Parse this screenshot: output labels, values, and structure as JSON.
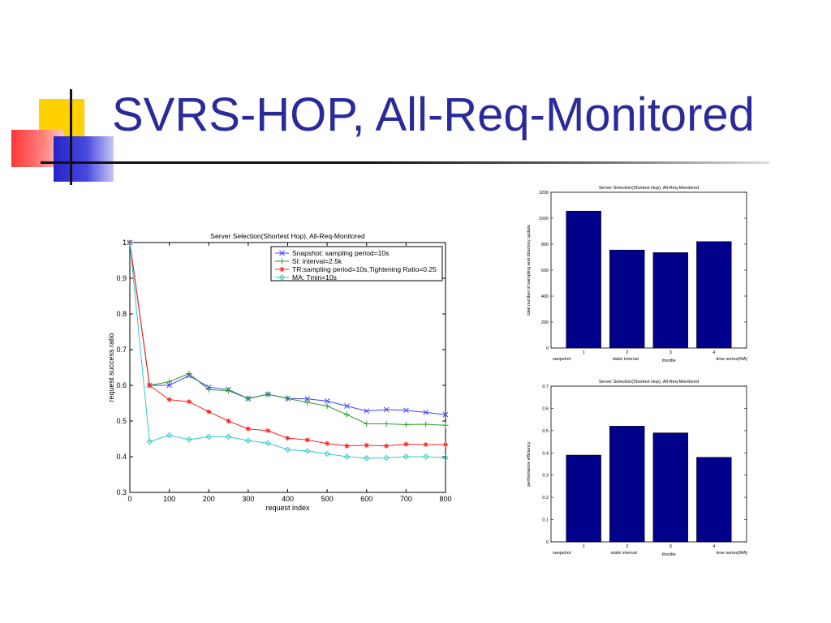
{
  "slide": {
    "title": "SVRS-HOP, All-Req-Monitored"
  },
  "chart_data": [
    {
      "type": "line",
      "title": "Server Selection(Shortest Hop), All-Req-Monitored",
      "xlabel": "request index",
      "ylabel": "request success ratio",
      "xlim": [
        0,
        800
      ],
      "ylim": [
        0.3,
        1
      ],
      "xticks": [
        "0",
        "100",
        "200",
        "300",
        "400",
        "500",
        "600",
        "700",
        "800"
      ],
      "yticks": [
        "0.3",
        "0.4",
        "0.5",
        "0.6",
        "0.7",
        "0.8",
        "0.9",
        "1"
      ],
      "grid": false,
      "legend_position": "top-right",
      "x": [
        0,
        50,
        100,
        150,
        200,
        250,
        300,
        350,
        400,
        450,
        500,
        550,
        600,
        650,
        700,
        750,
        800
      ],
      "series": [
        {
          "name": "Snapshot: sampling period=10s",
          "color": "#4040ff",
          "marker": "x",
          "values": [
            1.0,
            0.6,
            0.6,
            0.627,
            0.595,
            0.588,
            0.563,
            0.575,
            0.563,
            0.562,
            0.556,
            0.542,
            0.528,
            0.532,
            0.53,
            0.524,
            0.518
          ]
        },
        {
          "name": "SI: interval=2.5k",
          "color": "#2a9a2a",
          "marker": "plus",
          "values": [
            1.0,
            0.6,
            0.61,
            0.633,
            0.588,
            0.585,
            0.563,
            0.575,
            0.563,
            0.552,
            0.542,
            0.518,
            0.492,
            0.492,
            0.49,
            0.491,
            0.488
          ]
        },
        {
          "name": "TR:sampling period=10s,Tightening Ratio=0.25",
          "color": "#ff2020",
          "marker": "star",
          "values": [
            1.0,
            0.6,
            0.56,
            0.554,
            0.526,
            0.5,
            0.478,
            0.473,
            0.452,
            0.447,
            0.437,
            0.43,
            0.432,
            0.43,
            0.435,
            0.434,
            0.434
          ]
        },
        {
          "name": "MA: Tmin=10s",
          "color": "#30c8d0",
          "marker": "diamond",
          "values": [
            1.0,
            0.442,
            0.46,
            0.448,
            0.456,
            0.456,
            0.445,
            0.438,
            0.42,
            0.416,
            0.408,
            0.4,
            0.396,
            0.397,
            0.4,
            0.4,
            0.397
          ]
        }
      ]
    },
    {
      "type": "bar",
      "title": "Server Selection(Shortest Hop), All-Req-Monitored",
      "xlabel": "",
      "ylabel": "total number of sampling and directory update",
      "ylim": [
        0,
        1200
      ],
      "yticks": [
        "0",
        "200",
        "400",
        "600",
        "800",
        "1000",
        "1200"
      ],
      "categories": [
        "1",
        "2",
        "3",
        "4"
      ],
      "category_names": [
        "sanpshot",
        "static interval",
        "throttle",
        "time series(MA)"
      ],
      "values": [
        1055,
        755,
        735,
        820
      ],
      "bar_color": "#00008b"
    },
    {
      "type": "bar",
      "title": "Server Selection(Shortest Hop), All-Req-Monitored",
      "xlabel": "",
      "ylabel": "performance efficiency",
      "ylim": [
        0,
        0.7
      ],
      "yticks": [
        "0",
        "0.1",
        "0.2",
        "0.3",
        "0.4",
        "0.5",
        "0.6",
        "0.7"
      ],
      "categories": [
        "1",
        "2",
        "3",
        "4"
      ],
      "category_names": [
        "sanpshot",
        "static interval",
        "throttle",
        "time series(MA)"
      ],
      "values": [
        0.39,
        0.52,
        0.49,
        0.38
      ],
      "bar_color": "#00008b"
    }
  ]
}
